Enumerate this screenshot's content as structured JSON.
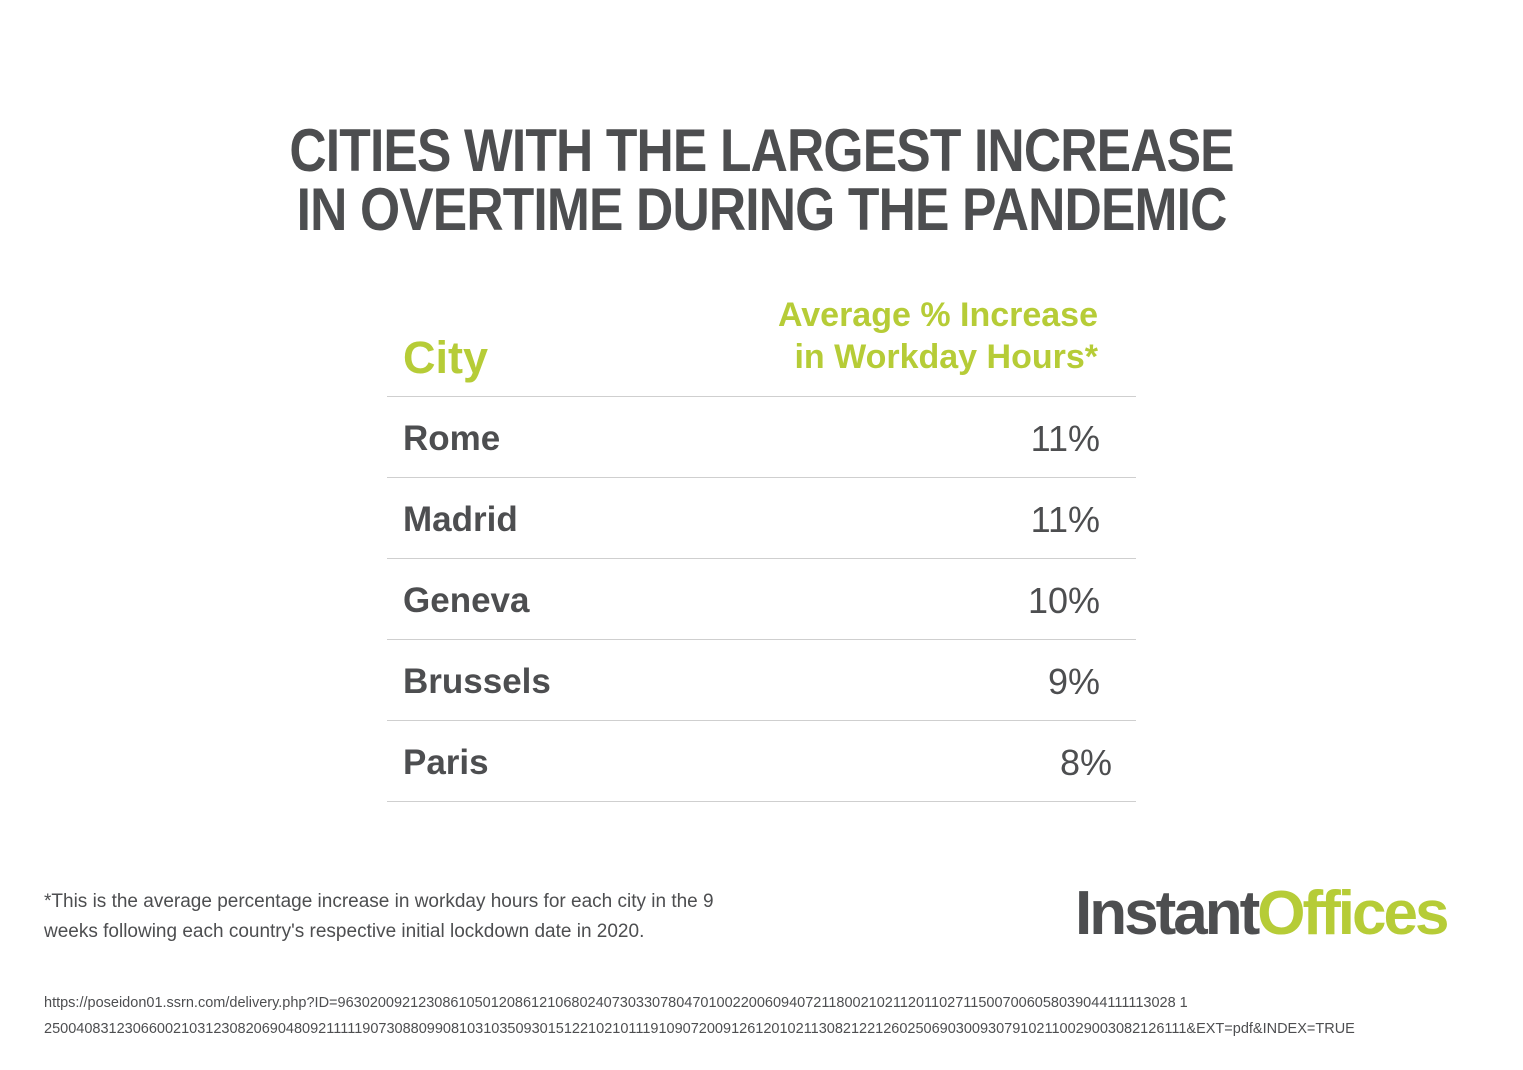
{
  "title": {
    "line1": "CITIES WITH THE LARGEST INCREASE",
    "line2": "IN OVERTIME DURING THE PANDEMIC"
  },
  "chart_data": {
    "type": "table",
    "columns": [
      "City",
      "Average % Increase in Workday Hours*"
    ],
    "header_value_line1": "Average % Increase",
    "header_value_line2": "in Workday Hours*",
    "rows": [
      {
        "city": "Rome",
        "value": "11%"
      },
      {
        "city": "Madrid",
        "value": "11%"
      },
      {
        "city": "Geneva",
        "value": "10%"
      },
      {
        "city": "Brussels",
        "value": "9%"
      },
      {
        "city": "Paris",
        "value": "8%"
      }
    ],
    "categories": [
      "Rome",
      "Madrid",
      "Geneva",
      "Brussels",
      "Paris"
    ],
    "values": [
      11,
      11,
      10,
      9,
      8
    ]
  },
  "footnote": {
    "line1": "*This is the average percentage increase in workday hours for each city in the 9",
    "line2": "weeks following each country's respective initial lockdown date in 2020."
  },
  "logo": {
    "word1": "Instant",
    "word2": "Offices"
  },
  "source_url": {
    "line1": "https://poseidon01.ssrn.com/delivery.php?ID=963020092123086105012086121068024073033078047010022006094072118002102112011027115007006058039044111113028 1",
    "line2": "25004083123066002103123082069048092111119073088099081031035093015122102101119109072009126120102113082122126025069030093079102110029003082126111&EXT=pdf&INDEX=TRUE"
  },
  "colors": {
    "text": "#4d4e50",
    "accent": "#b6cc37",
    "divider": "#cfcfcf"
  }
}
